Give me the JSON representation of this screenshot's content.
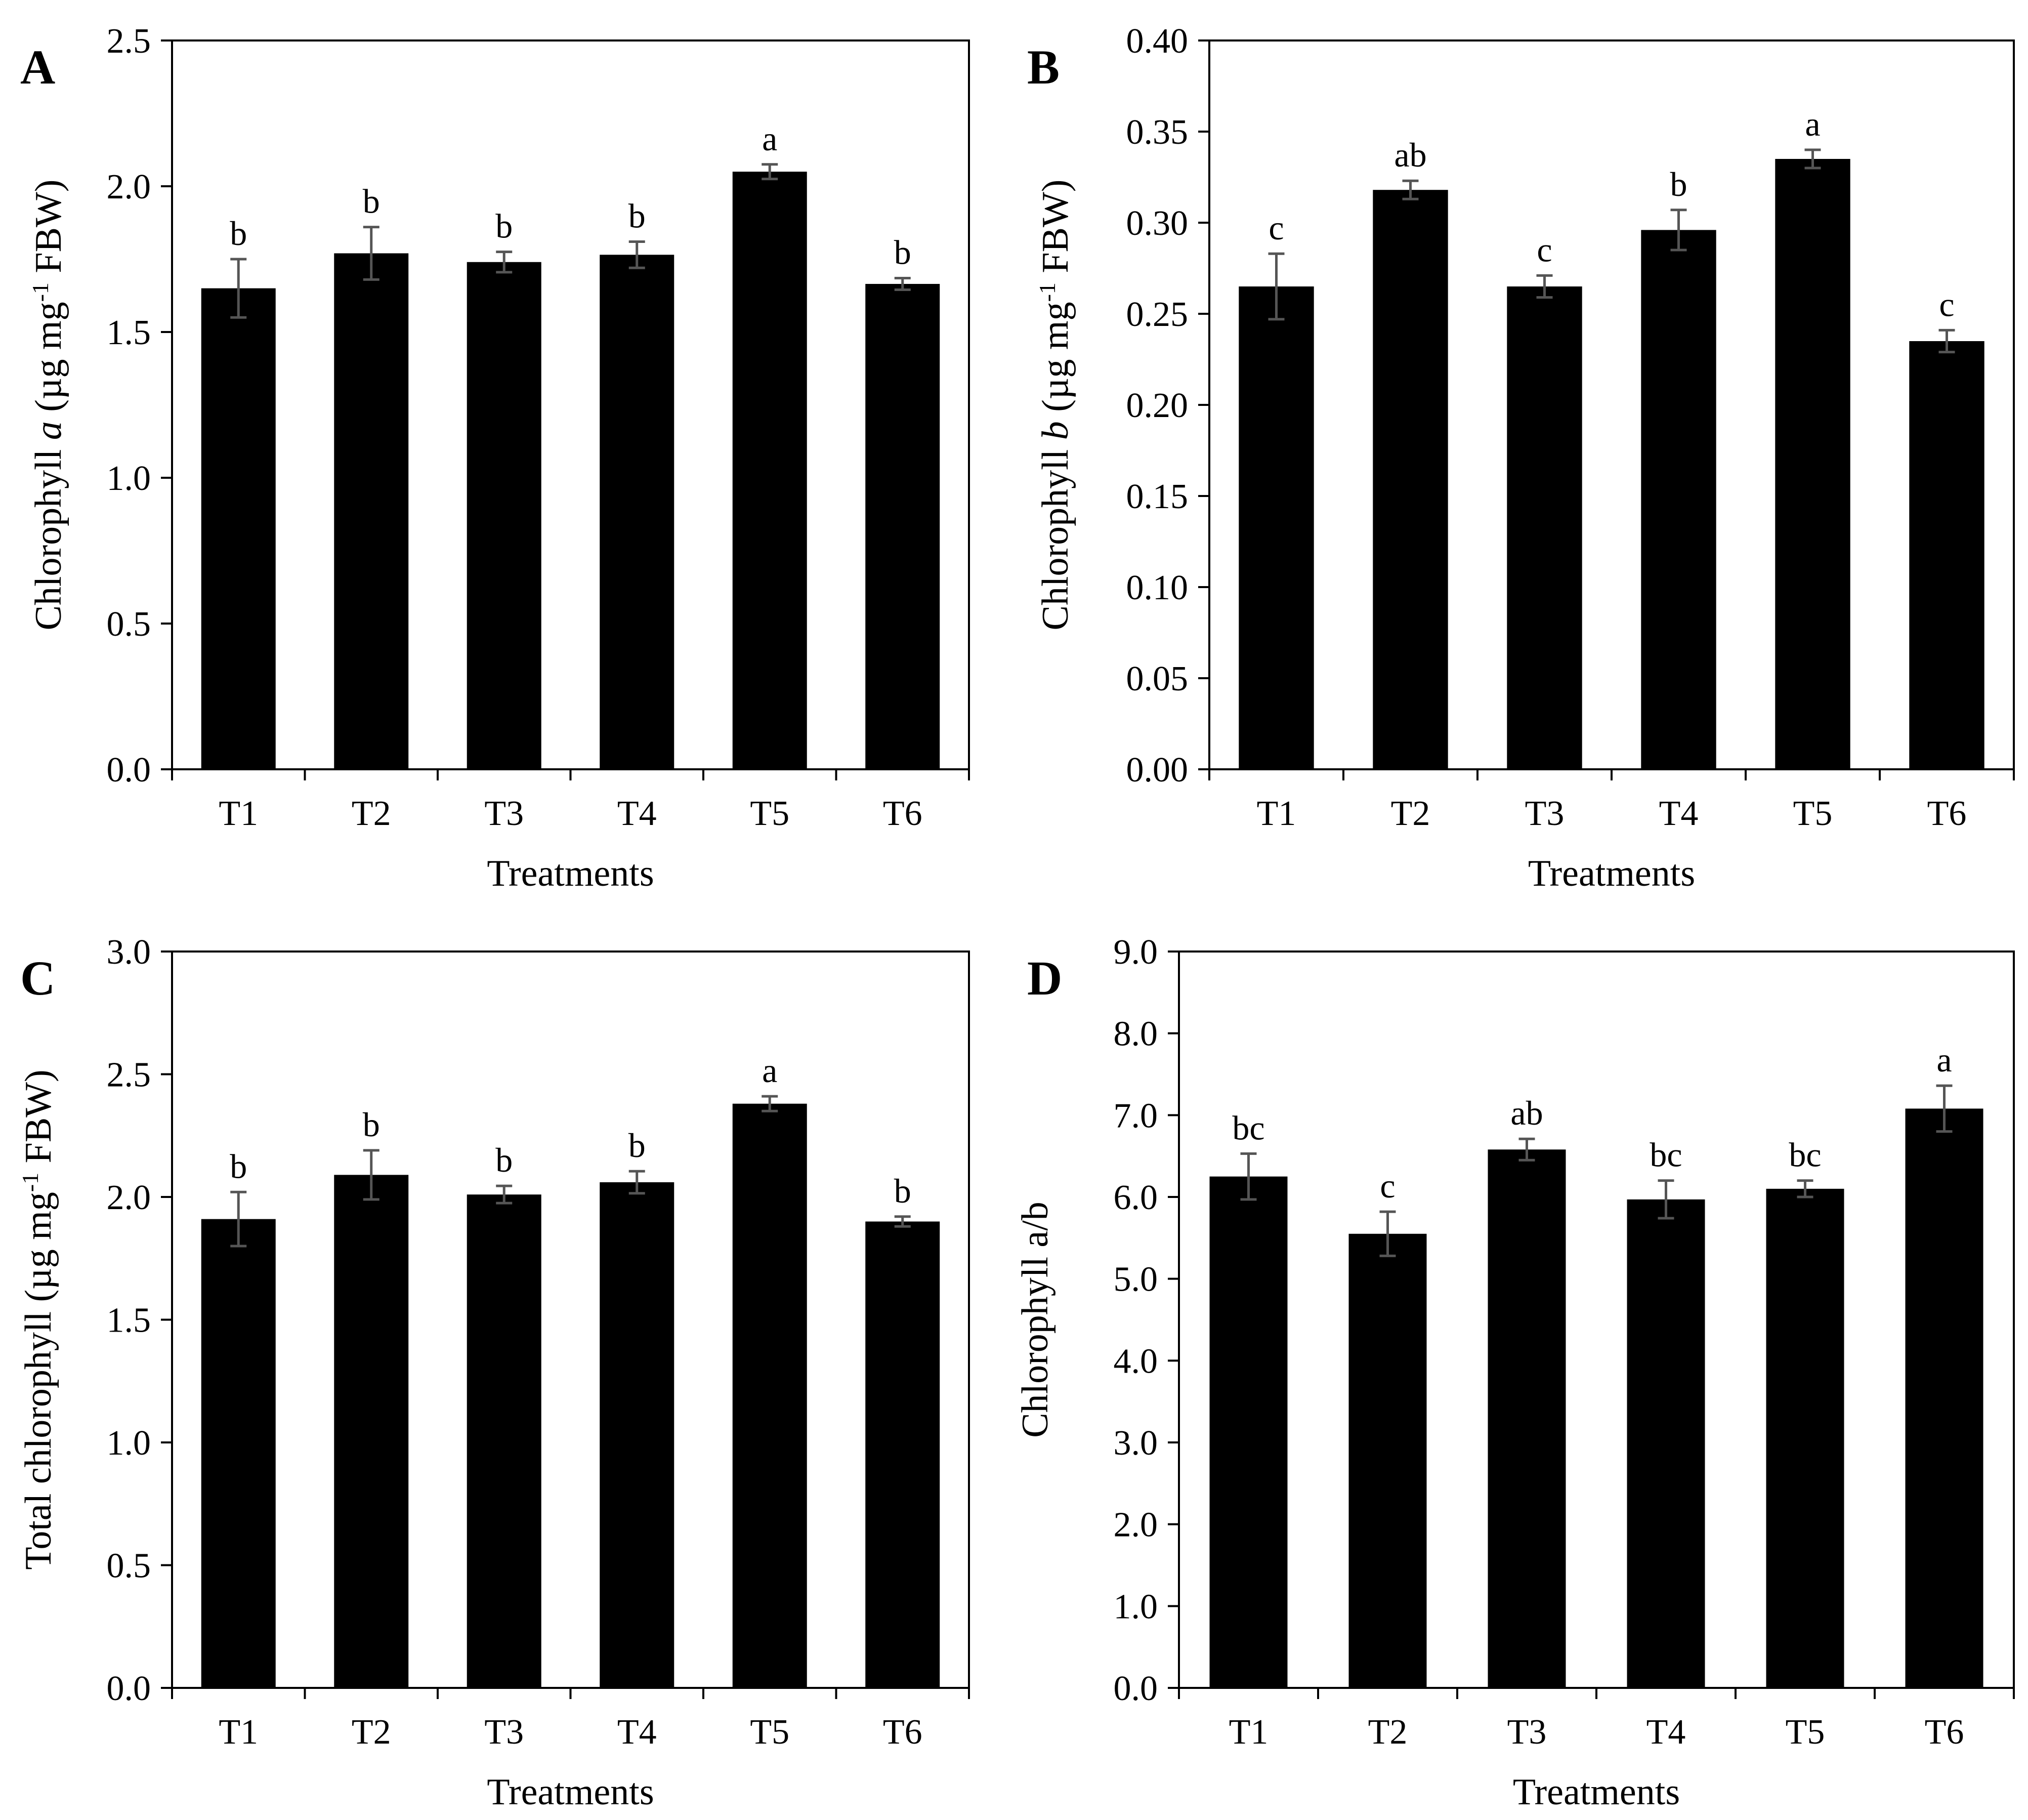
{
  "chart_data": [
    {
      "panel": "A",
      "type": "bar",
      "categories": [
        "T1",
        "T2",
        "T3",
        "T4",
        "T5",
        "T6"
      ],
      "values": [
        1.65,
        1.77,
        1.74,
        1.765,
        2.05,
        1.665
      ],
      "errors": [
        0.1,
        0.09,
        0.035,
        0.045,
        0.025,
        0.02
      ],
      "significance": [
        "b",
        "b",
        "b",
        "b",
        "a",
        "b"
      ],
      "xlabel": "Treatments",
      "ylabel_parts": [
        {
          "text": "Chlorophyll "
        },
        {
          "text": "a",
          "italic": true
        },
        {
          "text": " (µg mg"
        },
        {
          "text": "-1",
          "sup": true
        },
        {
          "text": " FBW)"
        }
      ],
      "ylim": [
        0,
        2.5
      ],
      "yticks": [
        "0.0",
        "0.5",
        "1.0",
        "1.5",
        "2.0",
        "2.5"
      ]
    },
    {
      "panel": "B",
      "type": "bar",
      "categories": [
        "T1",
        "T2",
        "T3",
        "T4",
        "T5",
        "T6"
      ],
      "values": [
        0.265,
        0.318,
        0.265,
        0.296,
        0.335,
        0.235
      ],
      "errors": [
        0.018,
        0.005,
        0.006,
        0.011,
        0.005,
        0.006
      ],
      "significance": [
        "c",
        "ab",
        "c",
        "b",
        "a",
        "c"
      ],
      "xlabel": "Treatments",
      "ylabel_parts": [
        {
          "text": "Chlorophyll "
        },
        {
          "text": "b",
          "italic": true
        },
        {
          "text": " (µg mg"
        },
        {
          "text": "-1",
          "sup": true
        },
        {
          "text": " FBW)"
        }
      ],
      "ylim": [
        0,
        0.4
      ],
      "yticks": [
        "0.00",
        "0.05",
        "0.10",
        "0.15",
        "0.20",
        "0.25",
        "0.30",
        "0.35",
        "0.40"
      ]
    },
    {
      "panel": "C",
      "type": "bar",
      "categories": [
        "T1",
        "T2",
        "T3",
        "T4",
        "T5",
        "T6"
      ],
      "values": [
        1.91,
        2.09,
        2.01,
        2.06,
        2.38,
        1.9
      ],
      "errors": [
        0.11,
        0.1,
        0.035,
        0.045,
        0.03,
        0.02
      ],
      "significance": [
        "b",
        "b",
        "b",
        "b",
        "a",
        "b"
      ],
      "xlabel": "Treatments",
      "ylabel_parts": [
        {
          "text": "Total chlorophyll (µg mg"
        },
        {
          "text": "-1",
          "sup": true
        },
        {
          "text": " FBW)"
        }
      ],
      "ylim": [
        0,
        3.0
      ],
      "yticks": [
        "0.0",
        "0.5",
        "1.0",
        "1.5",
        "2.0",
        "2.5",
        "3.0"
      ]
    },
    {
      "panel": "D",
      "type": "bar",
      "categories": [
        "T1",
        "T2",
        "T3",
        "T4",
        "T5",
        "T6"
      ],
      "values": [
        6.25,
        5.55,
        6.58,
        5.97,
        6.1,
        7.08
      ],
      "errors": [
        0.28,
        0.27,
        0.13,
        0.23,
        0.1,
        0.28
      ],
      "significance": [
        "bc",
        "c",
        "ab",
        "bc",
        "bc",
        "a"
      ],
      "xlabel": "Treatments",
      "ylabel_parts": [
        {
          "text": "Chlorophyll a/b"
        }
      ],
      "ylim": [
        0,
        9.0
      ],
      "yticks": [
        "0.0",
        "1.0",
        "2.0",
        "3.0",
        "4.0",
        "5.0",
        "6.0",
        "7.0",
        "8.0",
        "9.0"
      ]
    }
  ],
  "colors": {
    "bar": "#000000",
    "error_bar": "#555555",
    "axis": "#000000"
  }
}
